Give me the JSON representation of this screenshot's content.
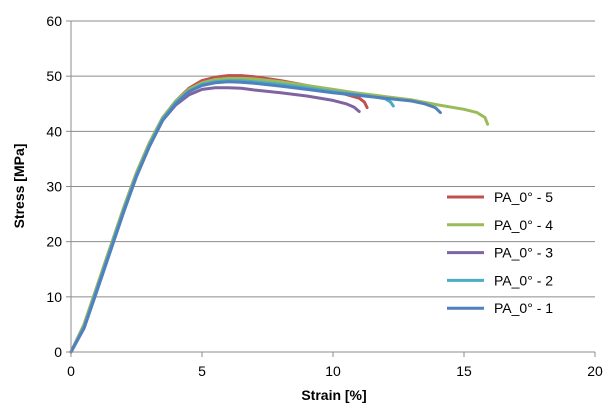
{
  "chart_data": {
    "type": "line",
    "title": "",
    "xlabel": "Strain [%]",
    "ylabel": "Stress [MPa]",
    "xlim": [
      0,
      20
    ],
    "ylim": [
      0,
      60
    ],
    "xticks": [
      0,
      5,
      10,
      15,
      20
    ],
    "yticks": [
      0,
      10,
      20,
      30,
      40,
      50,
      60
    ],
    "grid": "horizontal",
    "legend_position": "right",
    "series": [
      {
        "name": "PA_0° - 5",
        "color": "#c0504d",
        "x": [
          0,
          0.5,
          1,
          1.5,
          2,
          2.5,
          3,
          3.5,
          4,
          4.5,
          5,
          5.5,
          6,
          6.5,
          7,
          8,
          9,
          10,
          10.5,
          11,
          11.2,
          11.3
        ],
        "y": [
          0,
          5,
          12,
          19,
          26,
          32.5,
          38,
          42.5,
          45.5,
          47.8,
          49.2,
          49.8,
          50.1,
          50.1,
          49.9,
          49.2,
          48.3,
          47.3,
          46.7,
          46.0,
          45.3,
          44.3
        ]
      },
      {
        "name": "PA_0° - 4",
        "color": "#9bbb59",
        "x": [
          0,
          0.5,
          1,
          1.5,
          2,
          2.5,
          3,
          3.5,
          4,
          4.5,
          5,
          5.5,
          6,
          6.5,
          7,
          8,
          9,
          10,
          11,
          12,
          13,
          14,
          15,
          15.5,
          15.8,
          15.9
        ],
        "y": [
          0,
          5,
          12,
          19,
          26,
          32.5,
          38,
          42.5,
          45.5,
          47.6,
          48.8,
          49.4,
          49.6,
          49.6,
          49.5,
          49.0,
          48.3,
          47.6,
          46.9,
          46.3,
          45.7,
          44.8,
          44.0,
          43.4,
          42.5,
          41.3
        ]
      },
      {
        "name": "PA_0° - 3",
        "color": "#8064a2",
        "x": [
          0,
          0.5,
          1,
          1.5,
          2,
          2.5,
          3,
          3.5,
          4,
          4.5,
          5,
          5.5,
          6,
          6.5,
          7,
          8,
          9,
          10,
          10.5,
          10.8,
          11.0
        ],
        "y": [
          0,
          4.5,
          11.5,
          18.5,
          25.5,
          32,
          37.5,
          42,
          44.8,
          46.6,
          47.6,
          47.9,
          47.9,
          47.8,
          47.5,
          47.0,
          46.4,
          45.6,
          45.0,
          44.4,
          43.6
        ]
      },
      {
        "name": "PA_0° - 2",
        "color": "#4bacc6",
        "x": [
          0,
          0.5,
          1,
          1.5,
          2,
          2.5,
          3,
          3.5,
          4,
          4.5,
          5,
          5.5,
          6,
          6.5,
          7,
          8,
          9,
          10,
          11,
          11.5,
          12,
          12.2,
          12.3
        ],
        "y": [
          0,
          4.5,
          11.5,
          18.5,
          25.5,
          32,
          37.5,
          42.2,
          45.2,
          47.3,
          48.5,
          49.0,
          49.2,
          49.2,
          49.0,
          48.5,
          47.9,
          47.2,
          46.6,
          46.3,
          45.9,
          45.3,
          44.6
        ]
      },
      {
        "name": "PA_0° - 1",
        "color": "#4f81bd",
        "x": [
          0,
          0.5,
          1,
          1.5,
          2,
          2.5,
          3,
          3.5,
          4,
          4.5,
          5,
          5.5,
          6,
          6.5,
          7,
          8,
          9,
          10,
          11,
          12,
          13,
          13.5,
          13.9,
          14.1
        ],
        "y": [
          0,
          4.3,
          11.2,
          18.2,
          25.2,
          31.8,
          37.3,
          42.0,
          45.0,
          47.2,
          48.3,
          48.8,
          49.0,
          48.9,
          48.7,
          48.2,
          47.6,
          47.0,
          46.5,
          46.0,
          45.5,
          45.0,
          44.3,
          43.4
        ]
      }
    ]
  }
}
